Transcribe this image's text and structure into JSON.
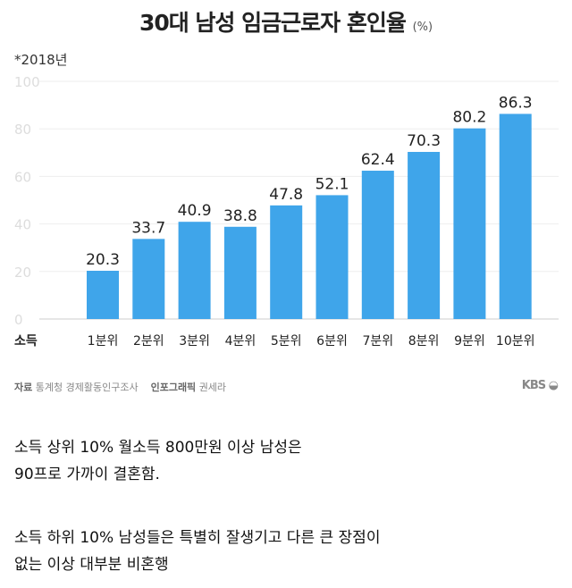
{
  "chart_data": {
    "type": "bar",
    "title": "30대 남성 임금근로자 혼인율",
    "unit": "(%)",
    "note": "*2018년",
    "xlabel": "소득",
    "categories": [
      "1분위",
      "2분위",
      "3분위",
      "4분위",
      "5분위",
      "6분위",
      "7분위",
      "8분위",
      "9분위",
      "10분위"
    ],
    "values": [
      20.3,
      33.7,
      40.9,
      38.8,
      47.8,
      52.1,
      62.4,
      70.3,
      80.2,
      86.3
    ],
    "yticks": [
      0,
      20,
      40,
      60,
      80,
      100
    ],
    "ylim": [
      0,
      100
    ],
    "grid": true,
    "bar_color": "#3fa5ea"
  },
  "source": {
    "label": "자료",
    "text": "통계청 경제활동인구조사",
    "credit_label": "인포그래픽",
    "credit": "권세라"
  },
  "logo": "KBS",
  "text": {
    "p1_line1": "소득 상위 10% 월소득 800만원 이상 남성은",
    "p1_line2": "90프로 가까이 결혼함.",
    "p2_line1": "소득 하위 10% 남성들은 특별히 잘생기고 다른 큰 장점이",
    "p2_line2": "없는 이상 대부분 비혼행"
  }
}
